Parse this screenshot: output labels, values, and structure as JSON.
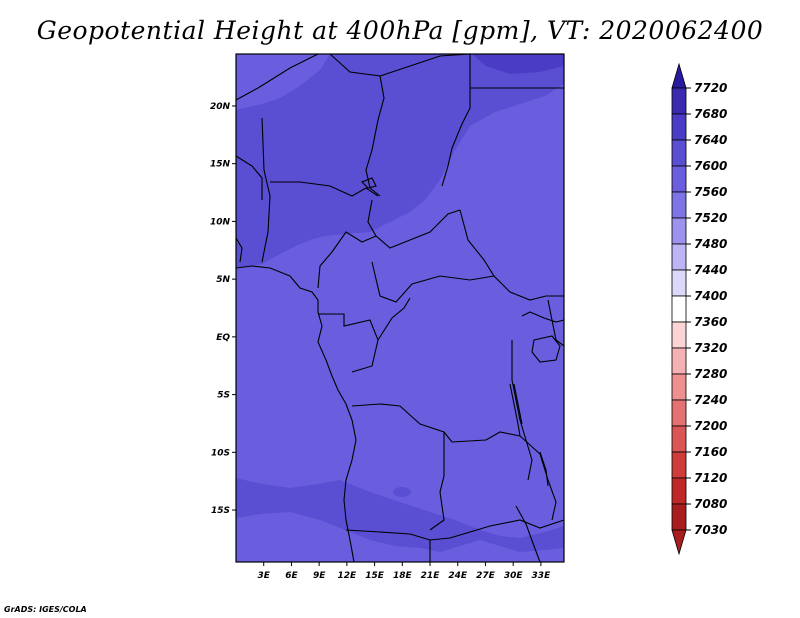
{
  "title": "Geopotential Height at 400hPa [gpm], VT: 2020062400",
  "credit": "GrADS: IGES/COLA",
  "map": {
    "lat_labels": [
      {
        "label": "20N",
        "lat": 20
      },
      {
        "label": "15N",
        "lat": 15
      },
      {
        "label": "10N",
        "lat": 10
      },
      {
        "label": "5N",
        "lat": 5
      },
      {
        "label": "EQ",
        "lat": 0
      },
      {
        "label": "5S",
        "lat": -5
      },
      {
        "label": "10S",
        "lat": -10
      },
      {
        "label": "15S",
        "lat": -15
      }
    ],
    "lon_labels": [
      {
        "label": "3E",
        "lon": 3
      },
      {
        "label": "6E",
        "lon": 6
      },
      {
        "label": "9E",
        "lon": 9
      },
      {
        "label": "12E",
        "lon": 12
      },
      {
        "label": "15E",
        "lon": 15
      },
      {
        "label": "18E",
        "lon": 18
      },
      {
        "label": "21E",
        "lon": 21
      },
      {
        "label": "24E",
        "lon": 24
      },
      {
        "label": "27E",
        "lon": 27
      },
      {
        "label": "30E",
        "lon": 30
      },
      {
        "label": "33E",
        "lon": 33
      }
    ]
  },
  "colorbar": {
    "levels": [
      {
        "label": "7720",
        "color": "#2a1aa0"
      },
      {
        "label": "7680",
        "color": "#3a2aaf"
      },
      {
        "label": "7640",
        "color": "#4a3cc4"
      },
      {
        "label": "7600",
        "color": "#5a4ed2"
      },
      {
        "label": "7560",
        "color": "#6a5ede"
      },
      {
        "label": "7520",
        "color": "#7f74e6"
      },
      {
        "label": "7480",
        "color": "#9c93ee"
      },
      {
        "label": "7440",
        "color": "#bcb6f4"
      },
      {
        "label": "7400",
        "color": "#dcd8fa"
      },
      {
        "label": "7360",
        "color": "#ffffff"
      },
      {
        "label": "7320",
        "color": "#fbd5d5"
      },
      {
        "label": "7280",
        "color": "#f6b2b2"
      },
      {
        "label": "7240",
        "color": "#ee9090"
      },
      {
        "label": "7200",
        "color": "#e47272"
      },
      {
        "label": "7160",
        "color": "#da5656"
      },
      {
        "label": "7120",
        "color": "#cf3c3c"
      },
      {
        "label": "7080",
        "color": "#c02828"
      },
      {
        "label": "7030",
        "color": "#a81e1e"
      }
    ],
    "top_arrow_color": "#2a1aa0",
    "bottom_arrow_color": "#a81e1e"
  },
  "field_colors": {
    "c7560": "#6a5ede",
    "c7600": "#5a4ed2",
    "c7640": "#4a3cc4",
    "c7680": "#3a2aaf"
  }
}
